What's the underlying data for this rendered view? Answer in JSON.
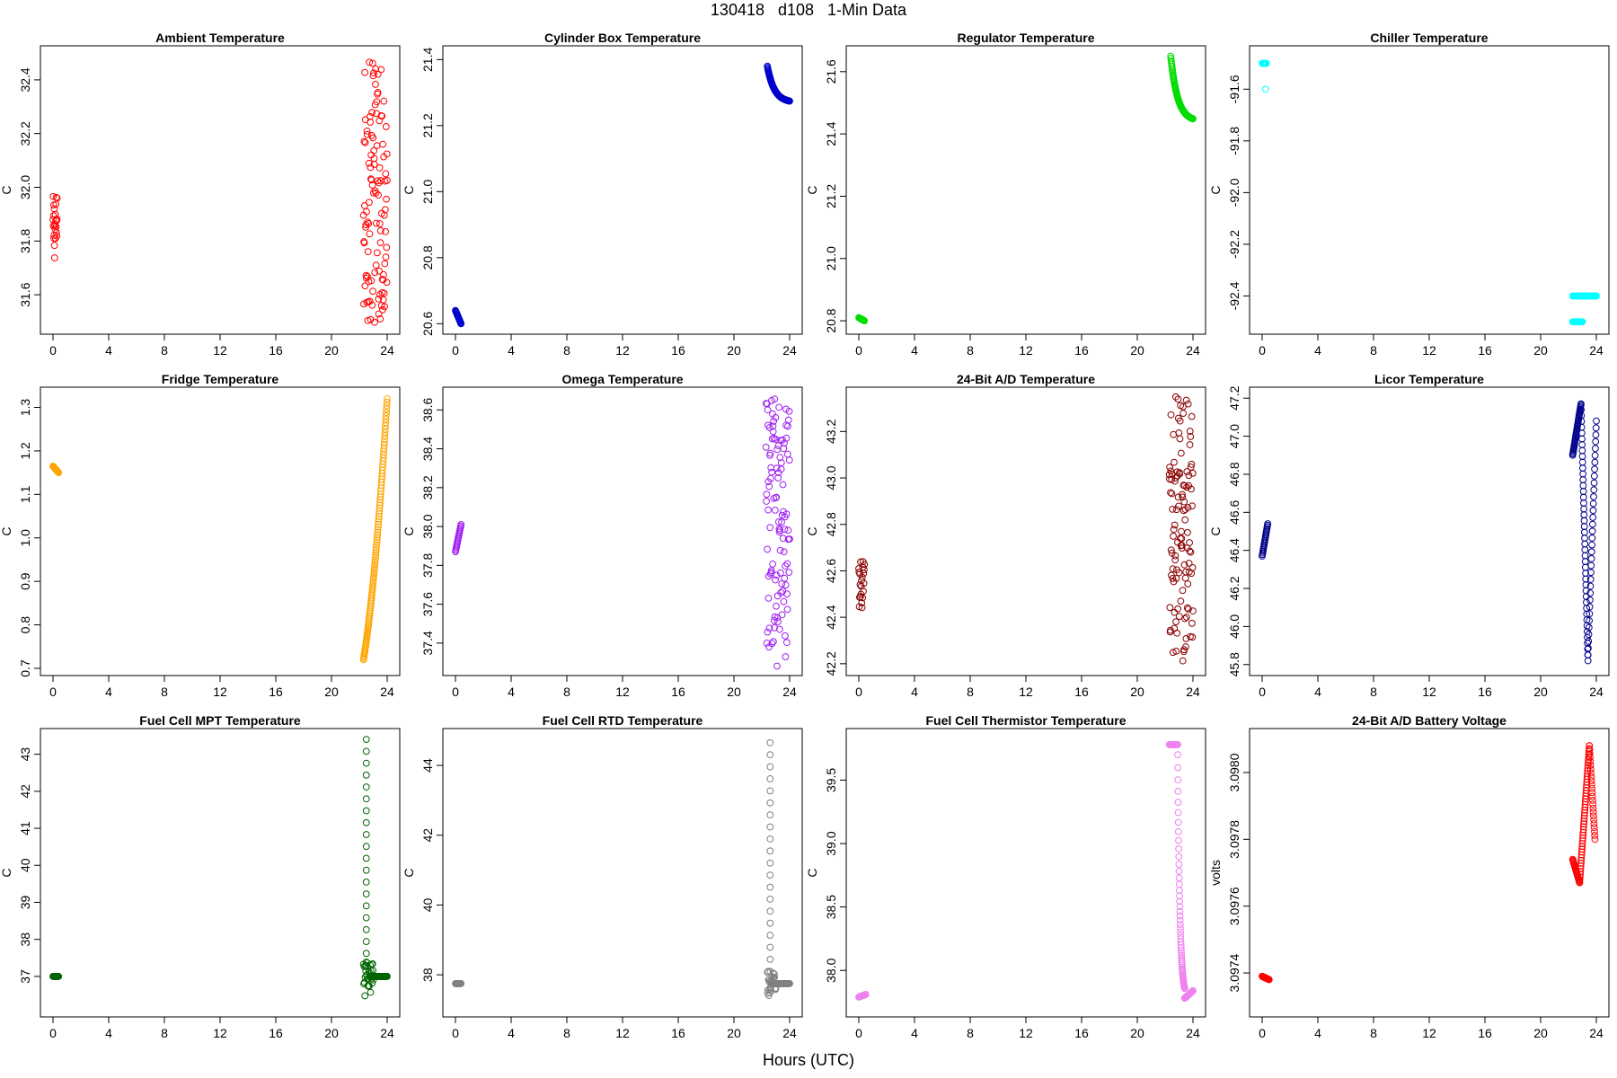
{
  "figure": {
    "title": "130418   d108   1-Min Data",
    "xlabel": "Hours (UTC)"
  },
  "chart_data": [
    {
      "type": "scatter",
      "title": "Ambient Temperature",
      "ylabel": "C",
      "color": "#ff0000",
      "xlim": [
        0,
        24
      ],
      "ylim": [
        31.48,
        32.5
      ],
      "xticks": [
        0,
        4,
        8,
        12,
        16,
        20,
        24
      ],
      "yticks": [
        31.6,
        31.8,
        32.0,
        32.2,
        32.4
      ],
      "ytick_decimals": 1,
      "clusters": [
        {
          "x0": 0.0,
          "x1": 0.3,
          "mode": "random",
          "n": 24,
          "ymin": 31.73,
          "ymax": 31.97
        },
        {
          "x0": 22.3,
          "x1": 24.0,
          "mode": "random",
          "n": 110,
          "ymin": 31.49,
          "ymax": 32.48
        }
      ]
    },
    {
      "type": "scatter",
      "title": "Cylinder Box Temperature",
      "ylabel": "C",
      "color": "#0000cd",
      "xlim": [
        0,
        24
      ],
      "ylim": [
        20.59,
        21.42
      ],
      "xticks": [
        0,
        4,
        8,
        12,
        16,
        20,
        24
      ],
      "yticks": [
        20.6,
        20.8,
        21.0,
        21.2,
        21.4
      ],
      "ytick_decimals": 1,
      "clusters": [
        {
          "x0": 0.0,
          "x1": 0.4,
          "mode": "linear",
          "n": 20,
          "ymin": 20.6,
          "ymax": 20.64,
          "y0": 20.64,
          "y1": 20.6
        },
        {
          "x0": 22.4,
          "x1": 24.0,
          "mode": "decay",
          "n": 95,
          "y0": 21.38,
          "y1": 21.27
        }
      ]
    },
    {
      "type": "scatter",
      "title": "Regulator Temperature",
      "ylabel": "C",
      "color": "#00dd00",
      "xlim": [
        0,
        24
      ],
      "ylim": [
        20.78,
        21.66
      ],
      "xticks": [
        0,
        4,
        8,
        12,
        16,
        20,
        24
      ],
      "yticks": [
        20.8,
        21.0,
        21.2,
        21.4,
        21.6
      ],
      "ytick_decimals": 1,
      "clusters": [
        {
          "x0": 0.0,
          "x1": 0.4,
          "mode": "linear",
          "n": 20,
          "y0": 20.81,
          "y1": 20.8
        },
        {
          "x0": 22.4,
          "x1": 24.0,
          "mode": "decay",
          "n": 95,
          "y0": 21.65,
          "y1": 21.44
        }
      ]
    },
    {
      "type": "scatter",
      "title": "Chiller Temperature",
      "ylabel": "C",
      "color": "#00ffff",
      "xlim": [
        0,
        24
      ],
      "ylim": [
        -92.52,
        -91.46
      ],
      "xticks": [
        0,
        4,
        8,
        12,
        16,
        20,
        24
      ],
      "yticks": [
        -91.6,
        -91.8,
        -92.0,
        -92.2,
        -92.4
      ],
      "ytick_decimals": 1,
      "clusters": [
        {
          "x0": 0.0,
          "x1": 0.3,
          "mode": "linear",
          "n": 12,
          "y0": -91.5,
          "y1": -91.5
        },
        {
          "x0": 0.25,
          "x1": 0.25,
          "mode": "linear",
          "n": 1,
          "y0": -91.6,
          "y1": -91.6
        },
        {
          "x0": 22.3,
          "x1": 24.0,
          "mode": "linear",
          "n": 90,
          "y0": -92.4,
          "y1": -92.4
        },
        {
          "x0": 22.3,
          "x1": 23.0,
          "mode": "linear",
          "n": 15,
          "y0": -92.5,
          "y1": -92.5
        }
      ]
    },
    {
      "type": "scatter",
      "title": "Fridge Temperature",
      "ylabel": "C",
      "color": "#ffa500",
      "xlim": [
        0,
        24
      ],
      "ylim": [
        0.7,
        1.33
      ],
      "xticks": [
        0,
        4,
        8,
        12,
        16,
        20,
        24
      ],
      "yticks": [
        0.7,
        0.8,
        0.9,
        1.0,
        1.1,
        1.2,
        1.3
      ],
      "ytick_decimals": 1,
      "clusters": [
        {
          "x0": 0.0,
          "x1": 0.4,
          "mode": "linear",
          "n": 20,
          "y0": 1.165,
          "y1": 1.15
        },
        {
          "x0": 22.3,
          "x1": 24.0,
          "mode": "curve",
          "n": 110,
          "y0": 0.72,
          "y1": 1.32
        }
      ]
    },
    {
      "type": "scatter",
      "title": "Omega Temperature",
      "ylabel": "C",
      "color": "#a020f0",
      "xlim": [
        0,
        24
      ],
      "ylim": [
        37.27,
        38.68
      ],
      "xticks": [
        0,
        4,
        8,
        12,
        16,
        20,
        24
      ],
      "yticks": [
        37.4,
        37.6,
        37.8,
        38.0,
        38.2,
        38.4,
        38.6
      ],
      "ytick_decimals": 1,
      "clusters": [
        {
          "x0": 0.0,
          "x1": 0.4,
          "mode": "linear",
          "n": 20,
          "y0": 37.87,
          "y1": 38.01
        },
        {
          "x0": 22.3,
          "x1": 24.0,
          "mode": "random",
          "n": 110,
          "ymin": 37.28,
          "ymax": 38.67
        }
      ]
    },
    {
      "type": "scatter",
      "title": "24-Bit A/D Temperature",
      "ylabel": "C",
      "color": "#8b0000",
      "xlim": [
        0,
        24
      ],
      "ylim": [
        42.18,
        43.36
      ],
      "xticks": [
        0,
        4,
        8,
        12,
        16,
        20,
        24
      ],
      "yticks": [
        42.2,
        42.4,
        42.6,
        42.8,
        43.0,
        43.2
      ],
      "ytick_decimals": 1,
      "clusters": [
        {
          "x0": 0.0,
          "x1": 0.4,
          "mode": "random",
          "n": 22,
          "ymin": 42.44,
          "ymax": 42.64
        },
        {
          "x0": 22.3,
          "x1": 24.0,
          "mode": "random",
          "n": 115,
          "ymin": 42.2,
          "ymax": 43.35
        }
      ]
    },
    {
      "type": "scatter",
      "title": "Licor Temperature",
      "ylabel": "C",
      "color": "#00008b",
      "xlim": [
        0,
        24
      ],
      "ylim": [
        45.78,
        47.22
      ],
      "xticks": [
        0,
        4,
        8,
        12,
        16,
        20,
        24
      ],
      "yticks": [
        45.8,
        46.0,
        46.2,
        46.4,
        46.6,
        46.8,
        47.0,
        47.2
      ],
      "ytick_decimals": 1,
      "clusters": [
        {
          "x0": 0.0,
          "x1": 0.4,
          "mode": "linear",
          "n": 22,
          "y0": 46.37,
          "y1": 46.54
        },
        {
          "x0": 22.3,
          "x1": 22.9,
          "mode": "linear",
          "n": 40,
          "y0": 46.9,
          "y1": 47.17
        },
        {
          "x0": 22.9,
          "x1": 23.4,
          "mode": "linear",
          "n": 45,
          "y0": 47.17,
          "y1": 45.82
        },
        {
          "x0": 23.4,
          "x1": 24.0,
          "mode": "linear",
          "n": 35,
          "y0": 45.85,
          "y1": 47.08
        }
      ]
    },
    {
      "type": "scatter",
      "title": "Fuel Cell MPT Temperature",
      "ylabel": "C",
      "color": "#006400",
      "xlim": [
        0,
        24
      ],
      "ylim": [
        36.1,
        43.5
      ],
      "xticks": [
        0,
        4,
        8,
        12,
        16,
        20,
        24
      ],
      "yticks": [
        37,
        38,
        39,
        40,
        41,
        42,
        43
      ],
      "ytick_decimals": 0,
      "clusters": [
        {
          "x0": 0.0,
          "x1": 0.4,
          "mode": "linear",
          "n": 20,
          "y0": 37.0,
          "y1": 37.0
        },
        {
          "x0": 22.5,
          "x1": 22.5,
          "mode": "linear",
          "n": 20,
          "y0": 43.4,
          "y1": 37.3
        },
        {
          "x0": 22.3,
          "x1": 23.0,
          "mode": "random",
          "n": 30,
          "ymin": 36.45,
          "ymax": 37.4
        },
        {
          "x0": 22.8,
          "x1": 24.0,
          "mode": "linear",
          "n": 60,
          "y0": 37.0,
          "y1": 37.0
        }
      ]
    },
    {
      "type": "scatter",
      "title": "Fuel Cell RTD Temperature",
      "ylabel": "C",
      "color": "#808080",
      "xlim": [
        0,
        24
      ],
      "ylim": [
        37.0,
        44.85
      ],
      "xticks": [
        0,
        4,
        8,
        12,
        16,
        20,
        24
      ],
      "yticks": [
        38,
        40,
        42,
        44
      ],
      "ytick_decimals": 0,
      "clusters": [
        {
          "x0": 0.0,
          "x1": 0.4,
          "mode": "linear",
          "n": 20,
          "y0": 37.75,
          "y1": 37.75
        },
        {
          "x0": 22.6,
          "x1": 22.6,
          "mode": "linear",
          "n": 20,
          "y0": 44.65,
          "y1": 38.1
        },
        {
          "x0": 22.4,
          "x1": 23.0,
          "mode": "random",
          "n": 30,
          "ymin": 37.35,
          "ymax": 38.1
        },
        {
          "x0": 22.9,
          "x1": 24.0,
          "mode": "linear",
          "n": 55,
          "y0": 37.75,
          "y1": 37.75
        }
      ]
    },
    {
      "type": "scatter",
      "title": "Fuel Cell Thermistor Temperature",
      "ylabel": "C",
      "color": "#ee82ee",
      "xlim": [
        0,
        24
      ],
      "ylim": [
        37.69,
        39.85
      ],
      "xticks": [
        0,
        4,
        8,
        12,
        16,
        20,
        24
      ],
      "yticks": [
        38.0,
        38.5,
        39.0,
        39.5
      ],
      "ytick_decimals": 1,
      "clusters": [
        {
          "x0": 0.0,
          "x1": 0.5,
          "mode": "linear",
          "n": 20,
          "y0": 37.79,
          "y1": 37.81
        },
        {
          "x0": 22.3,
          "x1": 22.9,
          "mode": "linear",
          "n": 20,
          "y0": 39.78,
          "y1": 39.78
        },
        {
          "x0": 22.9,
          "x1": 23.4,
          "mode": "decay",
          "n": 60,
          "y0": 39.7,
          "y1": 37.78
        },
        {
          "x0": 23.4,
          "x1": 24.0,
          "mode": "linear",
          "n": 30,
          "y0": 37.78,
          "y1": 37.84
        }
      ]
    },
    {
      "type": "scatter",
      "title": "24-Bit A/D Battery Voltage",
      "ylabel": "volts",
      "color": "#ff0000",
      "xlim": [
        0,
        24
      ],
      "ylim": [
        3.09729,
        3.09811
      ],
      "xticks": [
        0,
        4,
        8,
        12,
        16,
        20,
        24
      ],
      "yticks": [
        3.0974,
        3.0976,
        3.0978,
        3.098
      ],
      "ytick_decimals": 4,
      "clusters": [
        {
          "x0": 0.0,
          "x1": 0.5,
          "mode": "linear",
          "n": 20,
          "y0": 3.09739,
          "y1": 3.09738
        },
        {
          "x0": 22.3,
          "x1": 22.8,
          "mode": "linear",
          "n": 25,
          "y0": 3.09774,
          "y1": 3.09767
        },
        {
          "x0": 22.8,
          "x1": 23.5,
          "mode": "linear",
          "n": 50,
          "y0": 3.09767,
          "y1": 3.09808
        },
        {
          "x0": 23.5,
          "x1": 23.9,
          "mode": "linear",
          "n": 25,
          "y0": 3.09808,
          "y1": 3.0978
        }
      ]
    }
  ]
}
